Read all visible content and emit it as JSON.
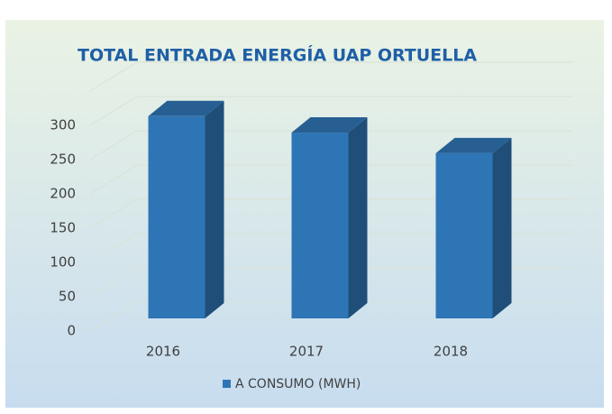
{
  "chart_data": {
    "type": "bar3d",
    "title": "TOTAL ENTRADA ENERGÍA UAP ORTUELLA",
    "categories": [
      "2016",
      "2017",
      "2018"
    ],
    "series": [
      {
        "name": "A CONSUMO (MWH)",
        "color": "#2e75b6",
        "values": [
          295,
          271,
          241
        ]
      }
    ],
    "ylim": [
      0,
      350
    ],
    "yticks": [
      0,
      50,
      100,
      150,
      200,
      250,
      300
    ],
    "grid": true,
    "legend": "bottom"
  }
}
